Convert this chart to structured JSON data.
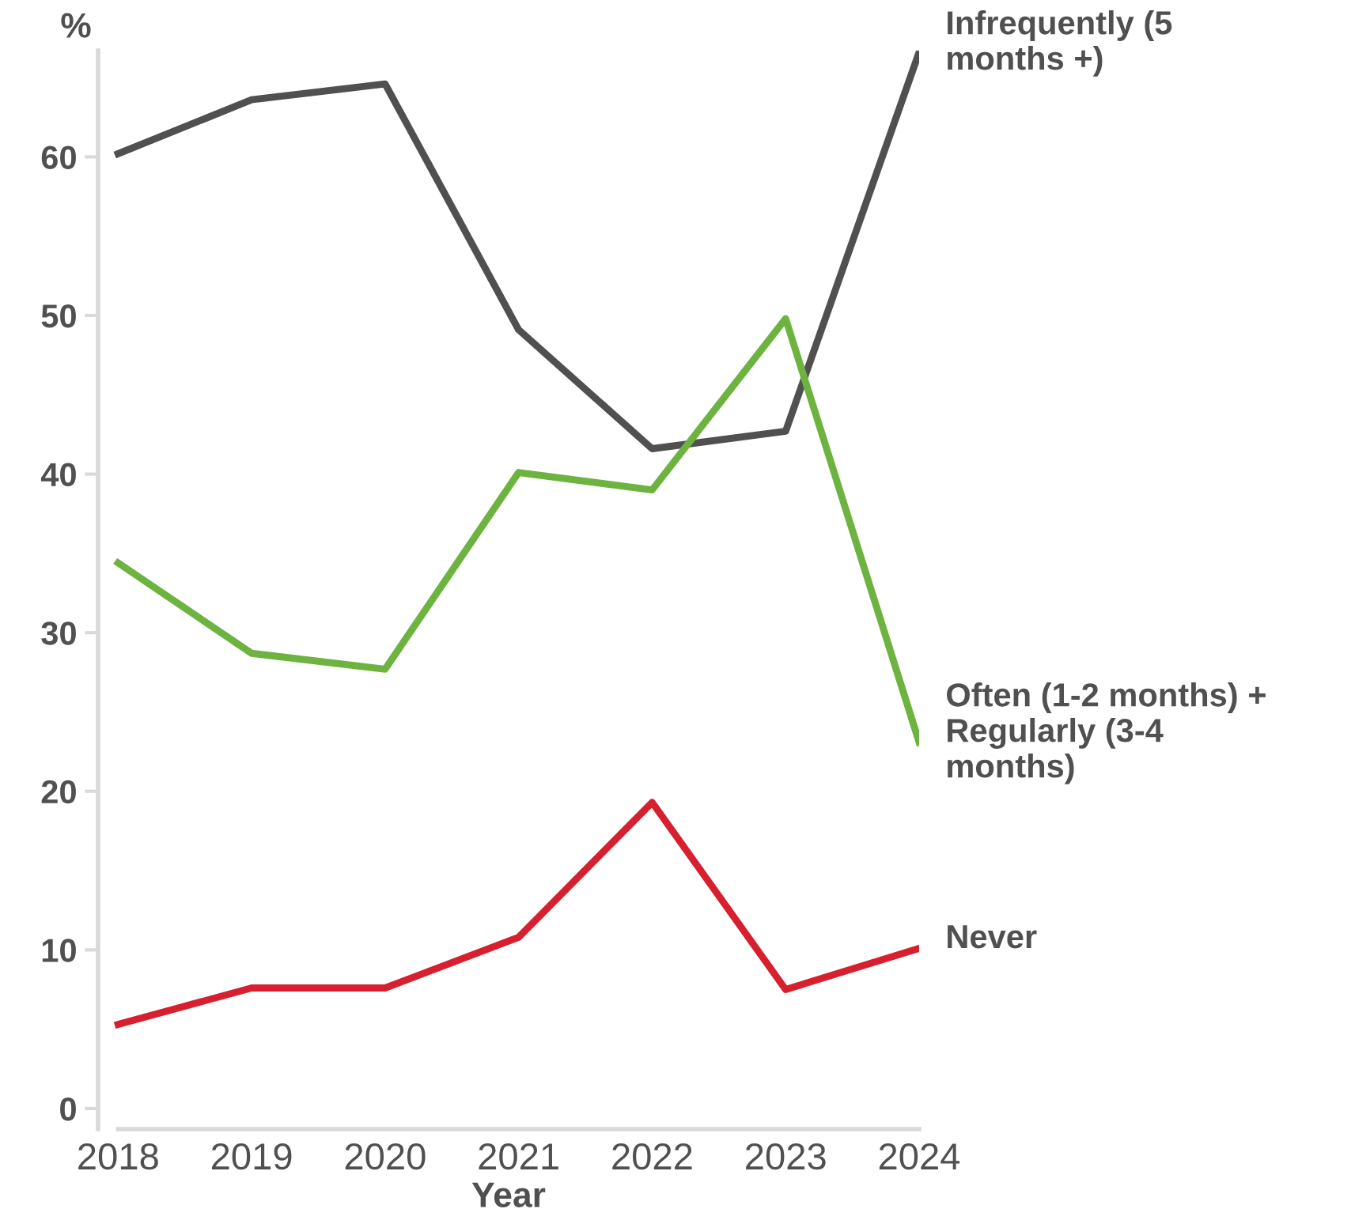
{
  "chart_data": {
    "type": "line",
    "xlabel": "Year",
    "ylabel": "%",
    "x": [
      2018,
      2019,
      2020,
      2021,
      2022,
      2023,
      2024
    ],
    "series": [
      {
        "name": "Infrequently (5\nmonths +)",
        "color": "#505050",
        "values": [
          60.2,
          63.6,
          64.6,
          49.1,
          41.6,
          42.7,
          66.6
        ]
      },
      {
        "name": "Often (1-2 months) +\nRegularly (3-4\nmonths)",
        "color": "#6db33f",
        "values": [
          34.4,
          28.7,
          27.7,
          40.1,
          39.0,
          49.8,
          23.1
        ]
      },
      {
        "name": "Never",
        "color": "#d7202f",
        "values": [
          5.3,
          7.6,
          7.6,
          10.8,
          19.3,
          7.5,
          10.1
        ]
      }
    ],
    "xlim": [
      2017.85,
      2024
    ],
    "ylim": [
      -1.3,
      66.7
    ],
    "xticks": [
      2018,
      2019,
      2020,
      2021,
      2022,
      2023,
      2024
    ],
    "yticks": [
      0,
      10,
      20,
      30,
      40,
      50,
      60
    ],
    "grid": false,
    "legend": false,
    "marker": "none",
    "line_style": "solid"
  }
}
